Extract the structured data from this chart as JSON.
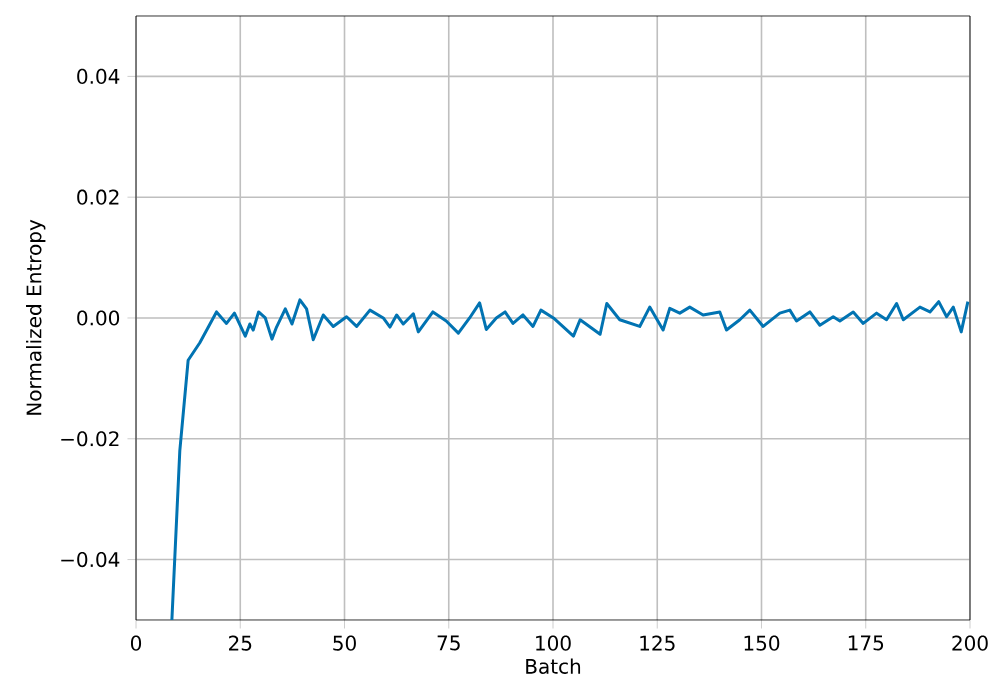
{
  "chart_data": {
    "type": "line",
    "xlabel": "Batch",
    "ylabel": "Normalized Entropy",
    "xlim": [
      0,
      200
    ],
    "ylim": [
      -0.05,
      0.05
    ],
    "xticks": [
      0,
      25,
      50,
      75,
      100,
      125,
      150,
      175,
      200
    ],
    "yticks": [
      {
        "value": -0.04,
        "label": "−0.04"
      },
      {
        "value": -0.02,
        "label": "−0.02"
      },
      {
        "value": 0,
        "label": "0.00"
      },
      {
        "value": 0.02,
        "label": "0.02"
      },
      {
        "value": 0.04,
        "label": "0.04"
      }
    ],
    "grid": true,
    "marker": "none",
    "line_style": "solid",
    "series": [
      {
        "color": "#0173b2",
        "x": [
          8.6,
          10.5,
          12.5,
          15.3,
          19.3,
          21.7,
          23.6,
          26.2,
          27.3,
          28.1,
          29.4,
          31,
          32.6,
          33.7,
          35.8,
          37.4,
          39.3,
          40.9,
          42.5,
          44.9,
          47.3,
          50.5,
          52.9,
          56.1,
          59.3,
          60.9,
          62.5,
          64.1,
          66.5,
          67.7,
          71.2,
          74.4,
          77.3,
          80,
          82.4,
          84,
          86.4,
          88.5,
          90.4,
          92.8,
          95.2,
          97.1,
          100.1,
          104.9,
          106.5,
          111.3,
          112.9,
          116,
          120.8,
          123.2,
          126.4,
          128,
          130.4,
          132.8,
          136,
          140,
          141.6,
          144.8,
          147.2,
          150.4,
          154.4,
          156.8,
          158.4,
          161.6,
          164,
          167.2,
          168.8,
          172,
          174.4,
          177.6,
          180,
          182.4,
          184,
          188,
          190.4,
          192.5,
          194.4,
          196,
          197.9,
          199.5
        ],
        "values": [
          -0.05,
          -0.022,
          -0.007,
          -0.0041,
          0.001,
          -0.0009,
          0.0008,
          -0.003,
          -0.001,
          -0.002,
          0.001,
          0,
          -0.0035,
          -0.0015,
          0.0015,
          -0.001,
          0.003,
          0.0015,
          -0.0036,
          0.0005,
          -0.0014,
          0.0002,
          -0.0014,
          0.0013,
          0,
          -0.0015,
          0.0005,
          -0.001,
          0.0007,
          -0.0023,
          0.001,
          -0.0005,
          -0.0025,
          0,
          0.0025,
          -0.0019,
          0,
          0.001,
          -0.0009,
          0.0005,
          -0.0014,
          0.0013,
          0,
          -0.003,
          -0.0003,
          -0.0027,
          0.0024,
          -0.0003,
          -0.0014,
          0.0018,
          -0.002,
          0.0016,
          0.0008,
          0.0018,
          0.0005,
          0.001,
          -0.002,
          -0.0003,
          0.0013,
          -0.0014,
          0.0008,
          0.0013,
          -0.0005,
          0.001,
          -0.0012,
          0.0002,
          -0.0005,
          0.001,
          -0.0009,
          0.0008,
          -0.0003,
          0.0024,
          -0.0003,
          0.0018,
          0.001,
          0.0027,
          0.0002,
          0.0018,
          -0.0023,
          0.0027
        ]
      }
    ]
  }
}
